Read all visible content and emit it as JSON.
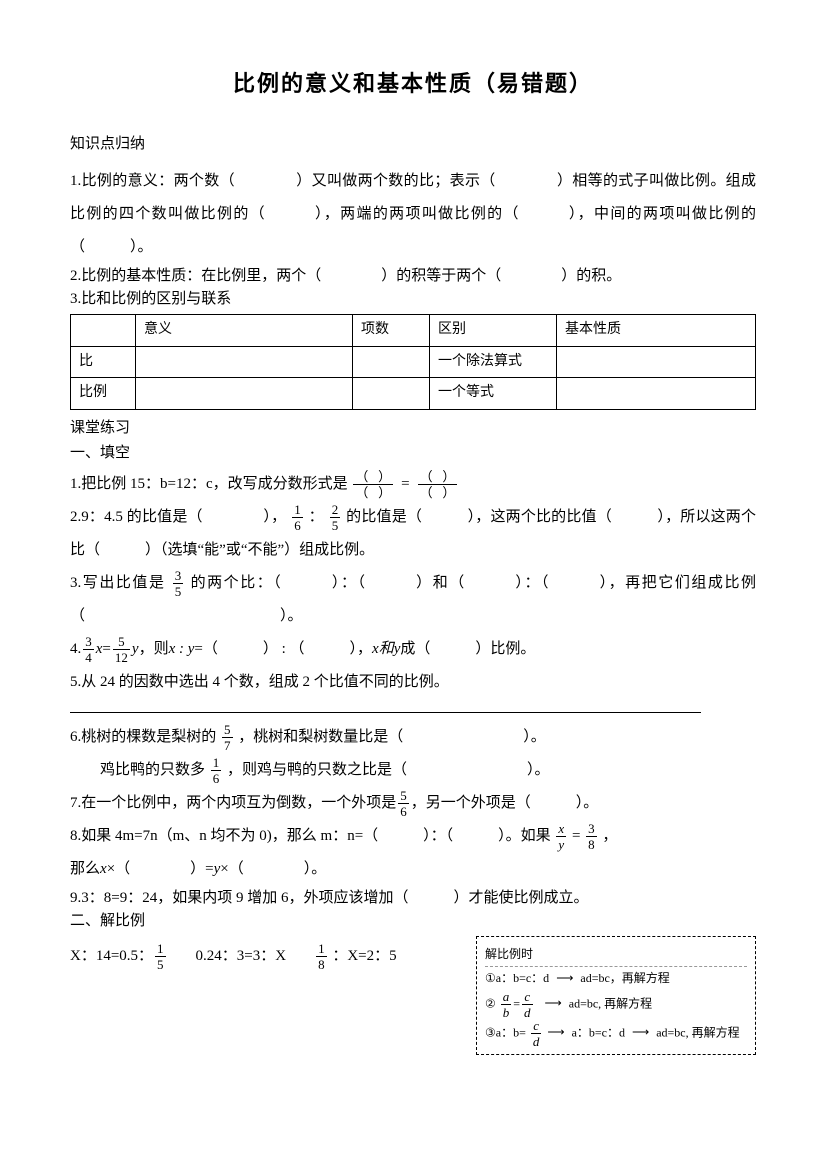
{
  "title": "比例的意义和基本性质（易错题）",
  "knowledge_heading": "知识点归纳",
  "item1": "1.比例的意义：两个数（　　　　）又叫做两个数的比；表示（　　　　）相等的式子叫做比例。组成比例的四个数叫做比例的（　　　），两端的两项叫做比例的（　　　），中间的两项叫做比例的（　　　）。",
  "item2": "2.比例的基本性质：在比例里，两个（　　　　）的积等于两个（　　　　）的积。",
  "item3": "3.比和比例的区别与联系",
  "table": {
    "headers": [
      "",
      "意义",
      "项数",
      "区别",
      "基本性质"
    ],
    "rows": [
      [
        "比",
        "",
        "",
        "一个除法算式",
        ""
      ],
      [
        "比例",
        "",
        "",
        "一个等式",
        ""
      ]
    ]
  },
  "practice_heading": "课堂练习",
  "section1_heading": "一、填空",
  "q1_prefix": "1.把比例 15：b=12：c，改写成分数形式是",
  "q2_a": "2.9：4.5 的比值是（　　　　），",
  "q2_frac1_num": "1",
  "q2_frac1_den": "6",
  "q2_frac2_num": "2",
  "q2_frac2_den": "5",
  "q2_b": " 的比值是（　　　），这两个比的比值（　　　），所以这两个比（　　　）（选填“能”或“不能”）组成比例。",
  "q3_a": "3.写出比值是 ",
  "q3_frac_num": "3",
  "q3_frac_den": "5",
  "q3_b": " 的两个比：（　　　）：（　　　）和（　　　）：（　　　），再把它们组成比例（　　　　　　　　　　　　　）。",
  "q4_a": "4.",
  "q4_frac1_num": "3",
  "q4_frac1_den": "4",
  "q4_mid": "=",
  "q4_frac2_num": "5",
  "q4_frac2_den": "12",
  "q4_b": "，则",
  "q4_c": "=（　　　） : （　　　），",
  "q4_d": "成（　　　）比例。",
  "q4_xy": "x : y",
  "q4_xand_y": "x和y",
  "q4_x": "x",
  "q4_y": "y",
  "q5": "5.从 24 的因数中选出 4 个数，组成 2 个比值不同的比例。",
  "q6_a": "6.桃树的棵数是梨树的 ",
  "q6_frac_num": "5",
  "q6_frac_den": "7",
  "q6_b": " ，桃树和梨树数量比是（　　　　　　　　）。",
  "q6_c": "鸡比鸭的只数多 ",
  "q6_frac2_num": "1",
  "q6_frac2_den": "6",
  "q6_d": " ，则鸡与鸭的只数之比是（　　　　　　　　）。",
  "q7_a": "7.在一个比例中，两个内项互为倒数，一个外项是",
  "q7_frac_num": "5",
  "q7_frac_den": "6",
  "q7_b": "，另一个外项是（　　　）。",
  "q8_a": "8.如果 4m=7n（m、n 均不为 0)，那么 m：n=（　　　）：（　　　）。如果 ",
  "q8_frac1_num": "x",
  "q8_frac1_den": "y",
  "q8_eq": " = ",
  "q8_frac2_num": "3",
  "q8_frac2_den": "8",
  "q8_b": " ，",
  "q8_c_prefix": "那么",
  "q8_x": "x",
  "q8_c_mid1": "×（　　　　）=",
  "q8_y": "y",
  "q8_c_mid2": "×（　　　　）。",
  "q9": "9.3：8=9：24，如果内项 9 增加 6，外项应该增加（　　　）才能使比例成立。",
  "section2_heading": "二、解比例",
  "eq1_a": "X：14=0.5：",
  "eq1_frac_num": "1",
  "eq1_frac_den": "5",
  "eq2": "0.24：3=3：X",
  "eq3_frac_num": "1",
  "eq3_frac_den": "8",
  "eq3_b": " ：X=2：5",
  "hint": {
    "title": "解比例时",
    "line1_a": "①a：b=c：d ",
    "line1_b": " ad=bc，再解方程",
    "line2_a": "② ",
    "line2_frac1_num": "a",
    "line2_frac1_den": "b",
    "line2_mid": "=",
    "line2_frac2_num": "c",
    "line2_frac2_den": "d",
    "line2_b": "ad=bc, 再解方程",
    "line3_a": "③a：b= ",
    "line3_frac_num": "c",
    "line3_frac_den": "d",
    "line3_b": " a：b=c：d ",
    "line3_c": " ad=bc, 再解方程"
  }
}
